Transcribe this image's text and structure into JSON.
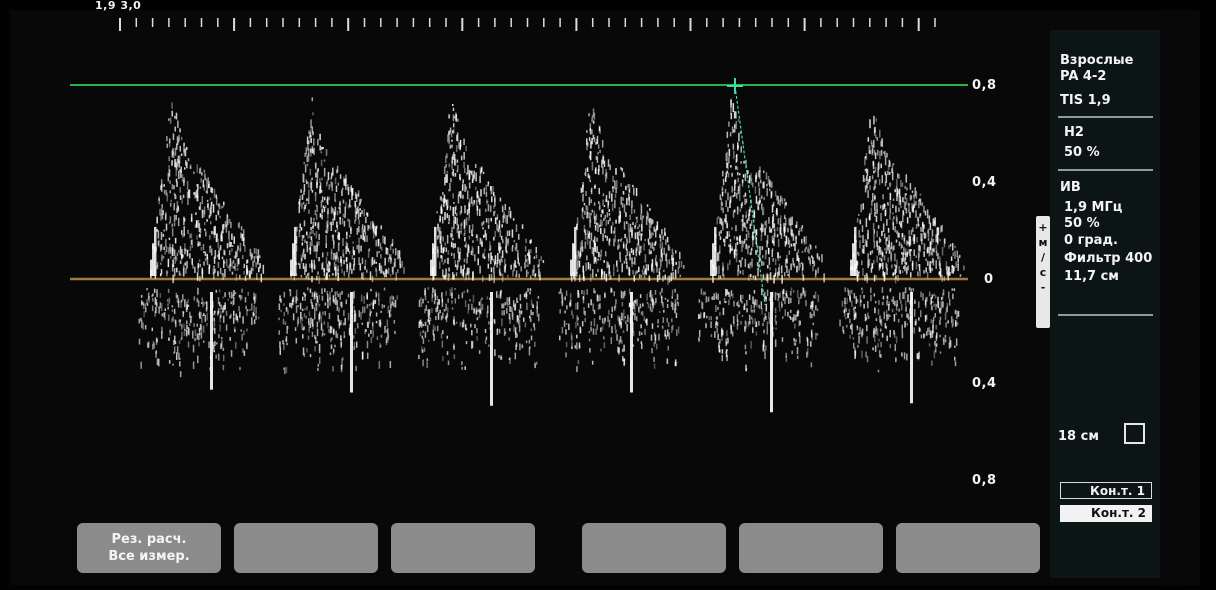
{
  "header": {
    "top_left_text": "1,9  3,0"
  },
  "scale_labels": [
    "0,8",
    "0,4",
    "0",
    "0,4",
    "0,8"
  ],
  "info_panel": {
    "preset": "Взрослые",
    "probe": "PA 4-2",
    "tis": "TIS 1,9",
    "mode2_title": "H2",
    "mode2_value": "50 %",
    "doppler_title": "ИВ",
    "frequency": "1,9 МГц",
    "power": "50 %",
    "angle": " 0 град.",
    "filter": "Фильтр 400",
    "gate": "11,7 см"
  },
  "units_label": "+\nм\n/\nс\n-",
  "depth": {
    "label": "18 см"
  },
  "contours": {
    "cont1": "Кон.т.  1",
    "cont2": "Кон.т.  2"
  },
  "softkeys": {
    "k1_line1": "Рез. расч.",
    "k1_line2": "Все измер.",
    "k2": "",
    "k3": "",
    "k4": "",
    "k5": "",
    "k6": ""
  },
  "colors": {
    "baseline": "#a07a3a",
    "max_velocity_line": "#29b34a",
    "cursor": "#40d9a8",
    "softkey": "#8b8b8b",
    "panel": "#0b1516"
  }
}
